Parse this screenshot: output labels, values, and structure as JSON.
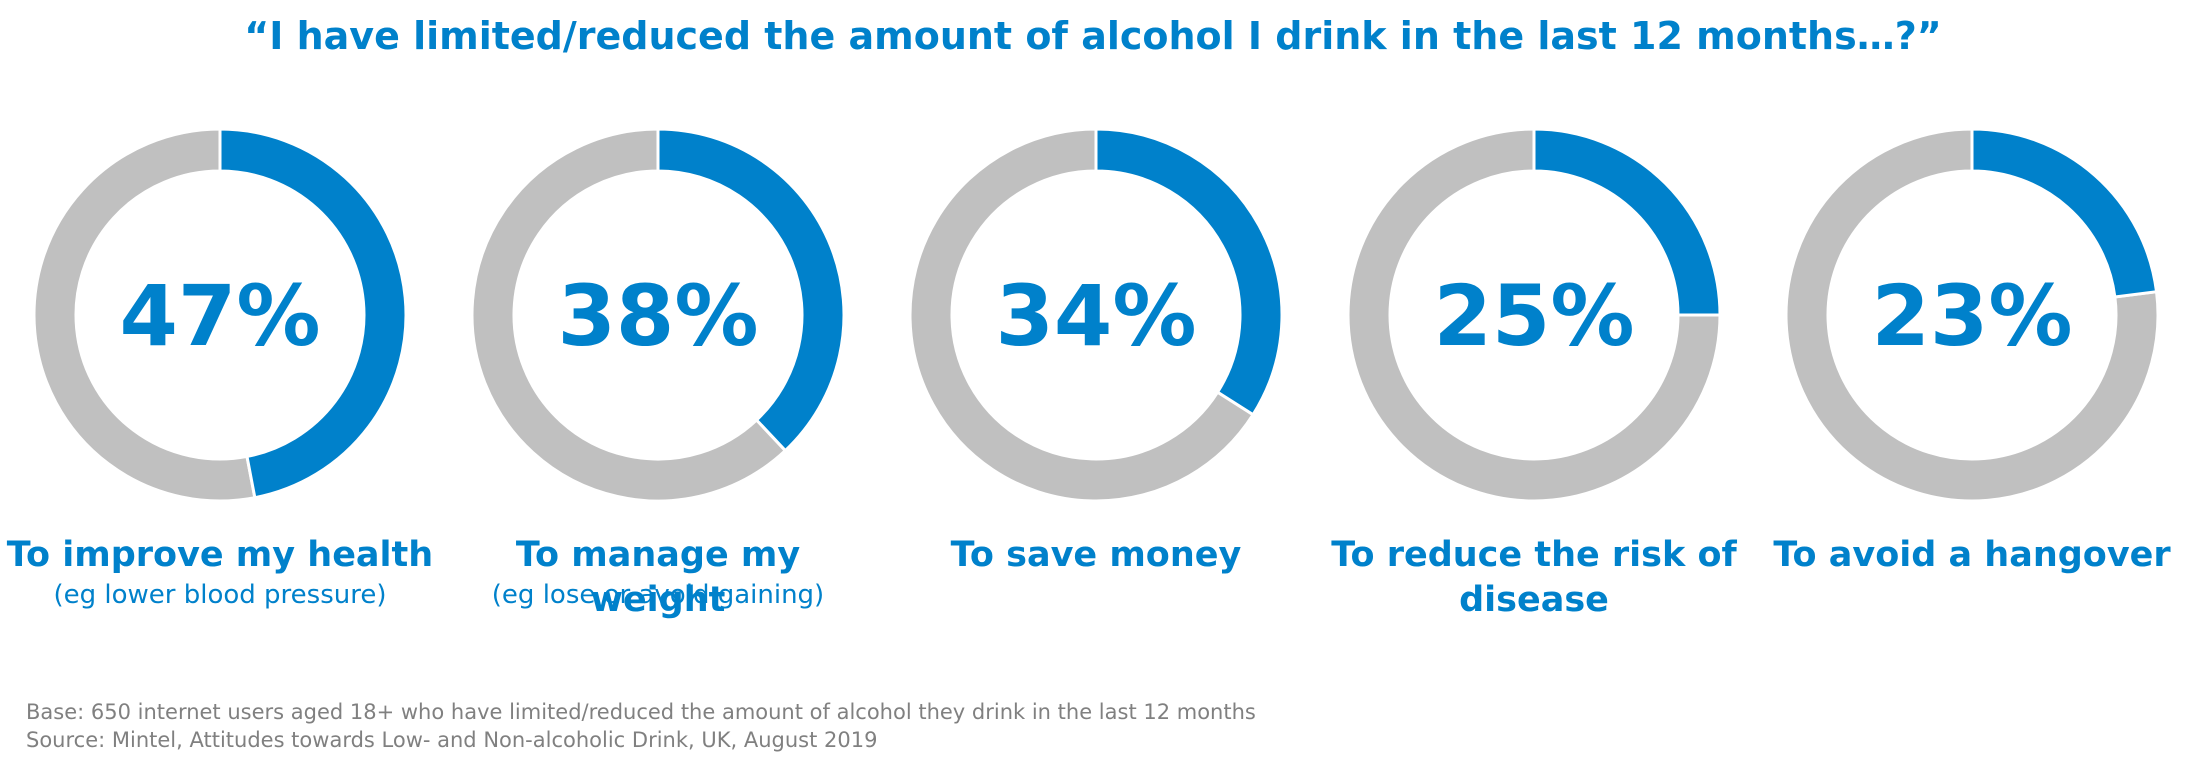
{
  "chart_data": {
    "type": "donut",
    "title": "“I have limited/reduced the amount of alcohol I drink in the last 12 months…?”",
    "categories": [
      "To improve my health",
      "To manage my weight",
      "To save money",
      "To reduce the risk of disease",
      "To avoid a hangover"
    ],
    "sublabels": [
      "(eg lower blood pressure)",
      "(eg lose or avoid gaining)",
      null,
      null,
      null
    ],
    "values": [
      47,
      38,
      34,
      25,
      23
    ],
    "value_labels": [
      "47%",
      "38%",
      "34%",
      "25%",
      "23%"
    ],
    "total": 100,
    "color": "#0081cb",
    "rest_color": "#c0c0c0",
    "notes": [
      "Base: 650 internet users aged 18+ who have limited/reduced the amount of alcohol they drink in the last 12 months",
      "Source: Mintel, Attitudes towards Low- and Non-alcoholic Drink, UK, August 2019"
    ]
  }
}
